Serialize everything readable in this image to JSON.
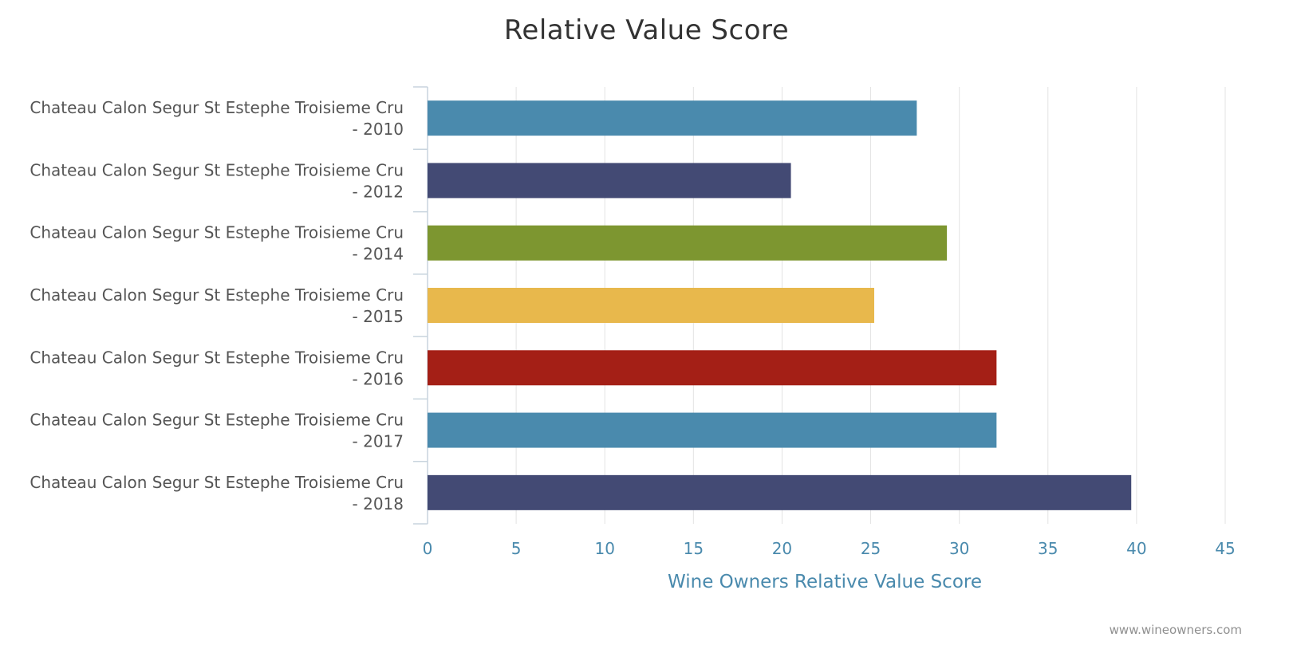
{
  "chart_data": {
    "type": "bar",
    "orientation": "horizontal",
    "title": "Relative Value Score",
    "xlabel": "Wine Owners Relative Value Score",
    "ylabel": "",
    "xlim": [
      0,
      45
    ],
    "x_ticks": [
      0,
      5,
      10,
      15,
      20,
      25,
      30,
      35,
      40,
      45
    ],
    "grid": true,
    "legend": "none",
    "categories": [
      [
        "Chateau Calon Segur St Estephe Troisieme Cru",
        "- 2010"
      ],
      [
        "Chateau Calon Segur St Estephe Troisieme Cru",
        "- 2012"
      ],
      [
        "Chateau Calon Segur St Estephe Troisieme Cru",
        "- 2014"
      ],
      [
        "Chateau Calon Segur St Estephe Troisieme Cru",
        "- 2015"
      ],
      [
        "Chateau Calon Segur St Estephe Troisieme Cru",
        "- 2016"
      ],
      [
        "Chateau Calon Segur St Estephe Troisieme Cru",
        "- 2017"
      ],
      [
        "Chateau Calon Segur St Estephe Troisieme Cru",
        "- 2018"
      ]
    ],
    "values": [
      27.6,
      20.5,
      29.3,
      25.2,
      32.1,
      32.1,
      39.7
    ],
    "colors": [
      "#4a8aad",
      "#434a74",
      "#7d9630",
      "#e8b84c",
      "#a41f16",
      "#4a8aad",
      "#434a74"
    ]
  },
  "credit": "www.wineowners.com",
  "colors": {
    "axis_text": "#4a8aad",
    "category_text": "#555555",
    "grid": "#e3e3e3"
  }
}
